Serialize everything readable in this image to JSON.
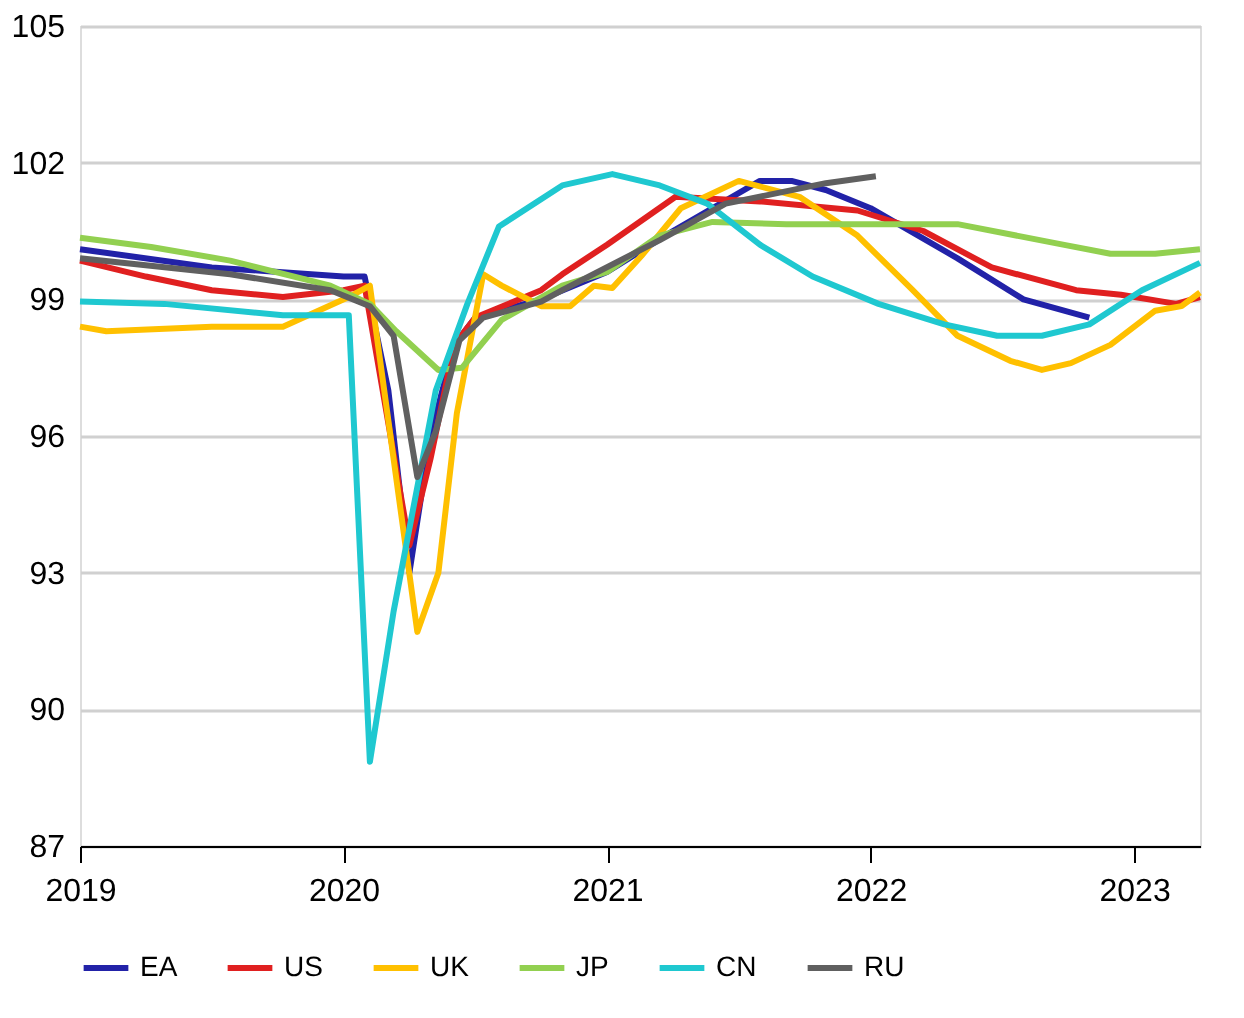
{
  "chart_data": {
    "type": "line",
    "xlim": [
      2019,
      2023.25
    ],
    "xticks": [
      2019,
      2020,
      2021,
      2022,
      2023
    ],
    "ylim": [
      87,
      105
    ],
    "yticks": [
      87,
      90,
      93,
      96,
      99,
      102,
      105
    ],
    "grid": "y",
    "legend": "bottom",
    "marker": "none",
    "line_style": "solid",
    "series": [
      {
        "name": "EA",
        "color": "#2222a8",
        "x": [
          2019,
          2019.5,
          2020,
          2020.08,
          2020.17,
          2020.25,
          2020.33,
          2020.42,
          2020.5,
          2020.75,
          2021,
          2021.25,
          2021.58,
          2021.7,
          2021.83,
          2022,
          2022.33,
          2022.58,
          2022.83
        ],
        "values": [
          100.1,
          99.7,
          99.5,
          99.5,
          97,
          93,
          96,
          98,
          98.6,
          99,
          99.6,
          100.5,
          101.6,
          101.6,
          101.4,
          101,
          99.9,
          99,
          98.6
        ]
      },
      {
        "name": "US",
        "color": "#e02020",
        "x": [
          2019,
          2019.25,
          2019.5,
          2019.77,
          2020,
          2020.08,
          2020.25,
          2020.33,
          2020.42,
          2020.5,
          2020.75,
          2020.83,
          2021,
          2021.26,
          2021.58,
          2021.95,
          2022.2,
          2022.46,
          2022.78,
          2022.95,
          2023.16,
          2023.25
        ],
        "values": [
          99.85,
          99.5,
          99.2,
          99.05,
          99.2,
          99.3,
          93.6,
          95.5,
          98,
          98.6,
          99.2,
          99.55,
          100.2,
          101.25,
          101.15,
          100.95,
          100.5,
          99.7,
          99.2,
          99.1,
          98.9,
          99.05
        ]
      },
      {
        "name": "UK",
        "color": "#ffc000",
        "x": [
          2019,
          2019.1,
          2019.5,
          2019.77,
          2020.02,
          2020.1,
          2020.28,
          2020.36,
          2020.43,
          2020.53,
          2020.6,
          2020.75,
          2020.86,
          2020.95,
          2021.02,
          2021.13,
          2021.28,
          2021.5,
          2021.73,
          2021.95,
          2022.16,
          2022.33,
          2022.53,
          2022.65,
          2022.76,
          2022.91,
          2023.08,
          2023.18,
          2023.25
        ],
        "values": [
          98.4,
          98.3,
          98.4,
          98.4,
          99.05,
          99.3,
          91.7,
          93,
          96.5,
          99.55,
          99.3,
          98.85,
          98.85,
          99.3,
          99.25,
          99.95,
          101,
          101.6,
          101.25,
          100.4,
          99.2,
          98.2,
          97.65,
          97.45,
          97.6,
          98,
          98.75,
          98.85,
          99.15
        ]
      },
      {
        "name": "JP",
        "color": "#92d050",
        "x": [
          2019,
          2019.27,
          2019.57,
          2019.95,
          2020.1,
          2020.2,
          2020.36,
          2020.45,
          2020.6,
          2020.83,
          2021,
          2021.2,
          2021.4,
          2021.68,
          2022.33,
          2022.73,
          2022.91,
          2023.08,
          2023.25
        ],
        "values": [
          100.35,
          100.15,
          99.85,
          99.3,
          98.9,
          98.3,
          97.45,
          97.5,
          98.55,
          99.3,
          99.6,
          100.4,
          100.7,
          100.65,
          100.65,
          100.2,
          100,
          100,
          100.1
        ]
      },
      {
        "name": "CN",
        "color": "#1fc8d0",
        "x": [
          2019,
          2019.32,
          2019.77,
          2020.02,
          2020.1,
          2020.19,
          2020.35,
          2020.47,
          2020.59,
          2020.83,
          2021.02,
          2021.2,
          2021.38,
          2021.58,
          2021.78,
          2022.03,
          2022.28,
          2022.48,
          2022.65,
          2022.83,
          2023.03,
          2023.25
        ],
        "values": [
          98.95,
          98.9,
          98.65,
          98.65,
          88.85,
          92.15,
          97,
          98.9,
          100.6,
          101.5,
          101.75,
          101.5,
          101.1,
          100.2,
          99.5,
          98.9,
          98.45,
          98.2,
          98.2,
          98.45,
          99.2,
          99.8
        ]
      },
      {
        "name": "RU",
        "color": "#606060",
        "x": [
          2019,
          2019.57,
          2019.95,
          2020.1,
          2020.19,
          2020.28,
          2020.35,
          2020.44,
          2020.53,
          2020.75,
          2020.83,
          2021.2,
          2021.45,
          2021.83,
          2022.02
        ],
        "values": [
          99.9,
          99.55,
          99.2,
          98.85,
          98.2,
          95.1,
          96.1,
          98.1,
          98.6,
          98.95,
          99.2,
          100.3,
          101.1,
          101.55,
          101.7
        ]
      }
    ]
  }
}
